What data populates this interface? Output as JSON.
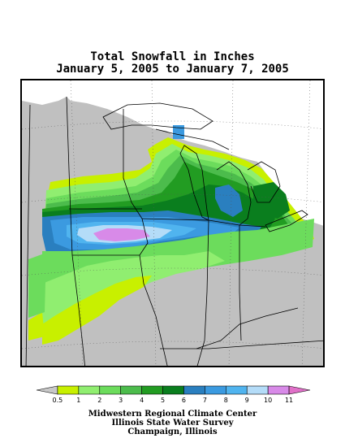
{
  "title": {
    "line1": "Total Snowfall in Inches",
    "line2": "January 5, 2005 to January 7, 2005"
  },
  "legend": {
    "tick_labels": [
      "0.5",
      "1",
      "2",
      "3",
      "4",
      "5",
      "6",
      "7",
      "8",
      "9",
      "10",
      "11"
    ],
    "colors": [
      "#c8c8c8",
      "#c8f000",
      "#90ee70",
      "#6cdc5c",
      "#4cbc4c",
      "#229c22",
      "#0a7e1e",
      "#2a7fbf",
      "#3b9ae0",
      "#50b4ef",
      "#b4dcf8",
      "#d88ae8",
      "#e070c8"
    ]
  },
  "credits": {
    "line1": "Midwestern Regional Climate Center",
    "line2": "Illinois State Water Survey",
    "line3": "Champaign, Illinois"
  },
  "map": {
    "region": "Upper Midwest",
    "no_data_color": "#ffffff",
    "below_threshold_color": "#c0c0c0",
    "max_value_inches": 11
  }
}
